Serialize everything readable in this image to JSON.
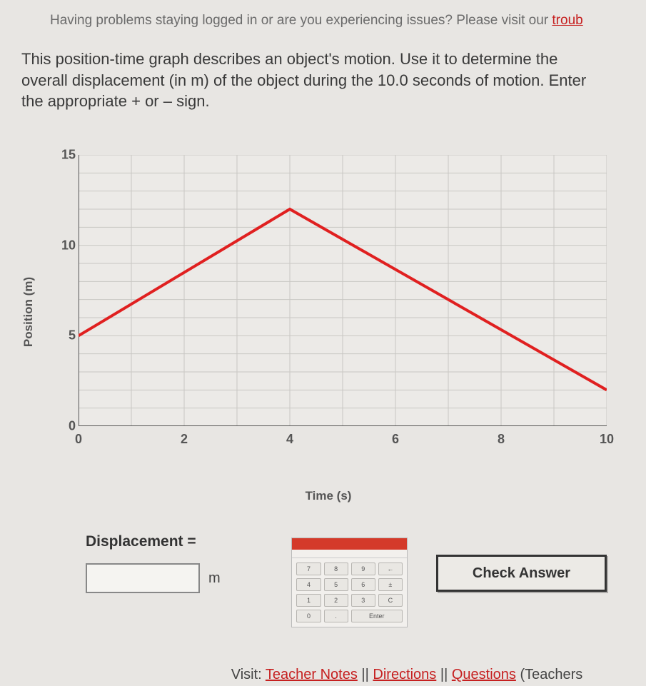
{
  "banner": {
    "text_prefix": "Having problems staying logged in or are you experiencing issues? Please visit our ",
    "link_text": "troub"
  },
  "question": {
    "text": "This position-time graph describes an object's motion. Use it to determine the overall displacement (in m) of the object during the 10.0 seconds of motion. Enter the appropriate + or – sign."
  },
  "chart": {
    "type": "line",
    "xlabel": "Time (s)",
    "ylabel": "Position (m)",
    "xlim": [
      0,
      10
    ],
    "ylim": [
      0,
      15
    ],
    "xtick_step": 2,
    "ytick_step": 5,
    "xticks": [
      0,
      2,
      4,
      6,
      8,
      10
    ],
    "yticks": [
      0,
      5,
      10,
      15
    ],
    "minor_grid_step_x": 1,
    "minor_grid_step_y": 1,
    "background_color": "#eceae7",
    "grid_color": "#c9c7c3",
    "axis_color": "#555555",
    "line_color": "#e02020",
    "line_width": 4,
    "points": [
      {
        "x": 0,
        "y": 5
      },
      {
        "x": 4,
        "y": 12
      },
      {
        "x": 10,
        "y": 2
      }
    ],
    "label_fontsize": 17,
    "tick_fontsize": 18
  },
  "answer": {
    "label": "Displacement =",
    "value": "",
    "unit": "m"
  },
  "keypad": {
    "header": "",
    "keys": [
      "7",
      "8",
      "9",
      "←",
      "4",
      "5",
      "6",
      "±",
      "1",
      "2",
      "3",
      "C",
      "0",
      ".",
      "Enter"
    ]
  },
  "check_button": {
    "label": "Check Answer"
  },
  "footer": {
    "prefix": "Visit: ",
    "links": [
      "Teacher Notes",
      "Directions",
      "Questions"
    ],
    "separator": " || ",
    "suffix": " (Teachers"
  }
}
